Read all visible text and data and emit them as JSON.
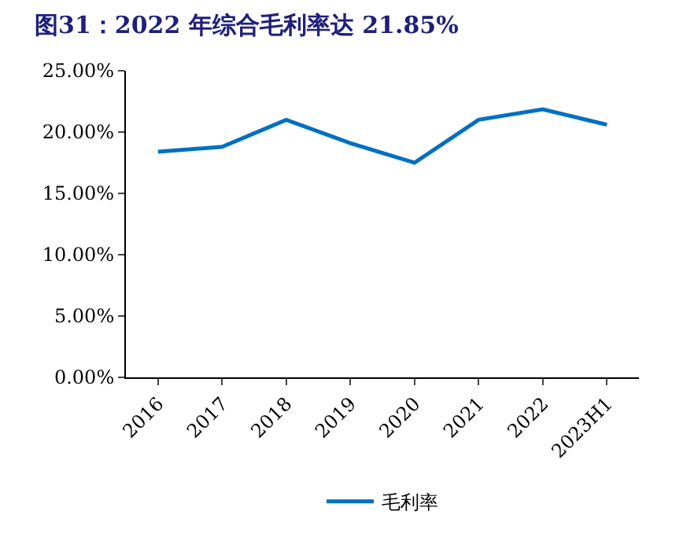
{
  "chart_data": {
    "type": "line",
    "title": "图31：2022 年综合毛利率达 21.85%",
    "categories": [
      "2016",
      "2017",
      "2018",
      "2019",
      "2020",
      "2021",
      "2022",
      "2023H1"
    ],
    "series": [
      {
        "name": "毛利率",
        "color": "#0070c0",
        "values": [
          18.4,
          18.8,
          21.0,
          19.1,
          17.5,
          21.0,
          21.85,
          20.6
        ]
      }
    ],
    "ylim": [
      0,
      25
    ],
    "yticks": [
      {
        "value": 0,
        "label": "0.00%"
      },
      {
        "value": 5,
        "label": "5.00%"
      },
      {
        "value": 10,
        "label": "10.00%"
      },
      {
        "value": 15,
        "label": "15.00%"
      },
      {
        "value": 20,
        "label": "20.00%"
      },
      {
        "value": 25,
        "label": "25.00%"
      }
    ],
    "legend": "bottom",
    "marker": "none",
    "line_style": "solid"
  }
}
